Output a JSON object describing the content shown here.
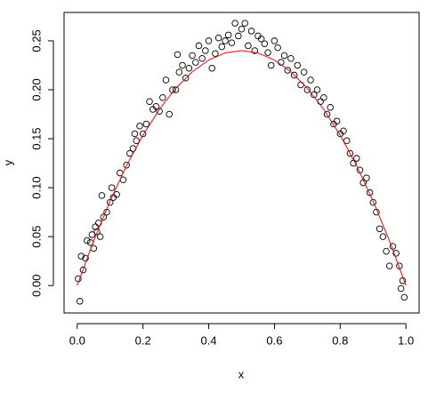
{
  "chart_data": {
    "type": "scatter",
    "xlabel": "x",
    "ylabel": "y",
    "xlim": [
      -0.04,
      1.04
    ],
    "ylim": [
      -0.028,
      0.279
    ],
    "xticks": [
      {
        "value": 0,
        "label": "0.0"
      },
      {
        "value": 0.2,
        "label": "0.2"
      },
      {
        "value": 0.4,
        "label": "0.4"
      },
      {
        "value": 0.6,
        "label": "0.6"
      },
      {
        "value": 0.8,
        "label": "0.8"
      },
      {
        "value": 1,
        "label": "1.0"
      }
    ],
    "yticks": [
      {
        "value": 0,
        "label": "0.00"
      },
      {
        "value": 0.05,
        "label": "0.05"
      },
      {
        "value": 0.1,
        "label": "0.10"
      },
      {
        "value": 0.15,
        "label": "0.15"
      },
      {
        "value": 0.2,
        "label": "0.20"
      },
      {
        "value": 0.25,
        "label": "0.25"
      }
    ],
    "series": [
      {
        "mode": "points",
        "color": "#000000",
        "x": [
          0.003,
          0.008,
          0.012,
          0.018,
          0.025,
          0.03,
          0.04,
          0.045,
          0.05,
          0.055,
          0.06,
          0.065,
          0.07,
          0.075,
          0.08,
          0.09,
          0.1,
          0.105,
          0.11,
          0.12,
          0.13,
          0.14,
          0.15,
          0.16,
          0.17,
          0.175,
          0.18,
          0.19,
          0.2,
          0.21,
          0.22,
          0.23,
          0.24,
          0.25,
          0.26,
          0.27,
          0.28,
          0.29,
          0.3,
          0.305,
          0.31,
          0.32,
          0.33,
          0.34,
          0.35,
          0.36,
          0.37,
          0.38,
          0.39,
          0.4,
          0.41,
          0.42,
          0.43,
          0.44,
          0.45,
          0.46,
          0.47,
          0.48,
          0.49,
          0.5,
          0.51,
          0.52,
          0.53,
          0.54,
          0.55,
          0.56,
          0.57,
          0.58,
          0.59,
          0.6,
          0.61,
          0.62,
          0.63,
          0.64,
          0.65,
          0.66,
          0.67,
          0.68,
          0.69,
          0.7,
          0.71,
          0.72,
          0.73,
          0.74,
          0.75,
          0.76,
          0.77,
          0.78,
          0.79,
          0.8,
          0.81,
          0.82,
          0.83,
          0.84,
          0.85,
          0.86,
          0.87,
          0.88,
          0.89,
          0.9,
          0.91,
          0.92,
          0.93,
          0.94,
          0.95,
          0.96,
          0.97,
          0.98,
          0.985,
          0.99,
          0.995
        ],
        "values": [
          0.007,
          -0.016,
          0.03,
          0.016,
          0.028,
          0.046,
          0.044,
          0.052,
          0.038,
          0.06,
          0.055,
          0.064,
          0.05,
          0.092,
          0.07,
          0.075,
          0.085,
          0.1,
          0.09,
          0.093,
          0.115,
          0.108,
          0.123,
          0.135,
          0.14,
          0.155,
          0.148,
          0.163,
          0.155,
          0.165,
          0.188,
          0.18,
          0.183,
          0.178,
          0.192,
          0.21,
          0.175,
          0.2,
          0.2,
          0.236,
          0.218,
          0.225,
          0.212,
          0.222,
          0.235,
          0.228,
          0.245,
          0.232,
          0.24,
          0.25,
          0.222,
          0.237,
          0.253,
          0.244,
          0.25,
          0.256,
          0.248,
          0.268,
          0.255,
          0.262,
          0.268,
          0.245,
          0.26,
          0.24,
          0.255,
          0.252,
          0.247,
          0.238,
          0.225,
          0.25,
          0.243,
          0.228,
          0.235,
          0.22,
          0.232,
          0.215,
          0.225,
          0.205,
          0.218,
          0.2,
          0.21,
          0.195,
          0.2,
          0.188,
          0.192,
          0.175,
          0.182,
          0.165,
          0.168,
          0.155,
          0.158,
          0.148,
          0.135,
          0.125,
          0.13,
          0.118,
          0.105,
          0.11,
          0.095,
          0.085,
          0.075,
          0.058,
          0.05,
          0.035,
          0.02,
          0.04,
          0.033,
          0.02,
          -0.003,
          0.005,
          -0.012
        ]
      },
      {
        "mode": "line",
        "color": "#ff0000",
        "x": [
          0,
          0.05,
          0.1,
          0.15,
          0.2,
          0.25,
          0.3,
          0.35,
          0.4,
          0.45,
          0.5,
          0.55,
          0.6,
          0.65,
          0.7,
          0.75,
          0.8,
          0.85,
          0.9,
          0.95,
          1
        ],
        "values": [
          0,
          0.0456,
          0.0864,
          0.1224,
          0.1536,
          0.18,
          0.2016,
          0.2184,
          0.2304,
          0.2376,
          0.24,
          0.2376,
          0.2304,
          0.2184,
          0.2016,
          0.18,
          0.1536,
          0.1224,
          0.0864,
          0.0456,
          0
        ]
      }
    ]
  }
}
